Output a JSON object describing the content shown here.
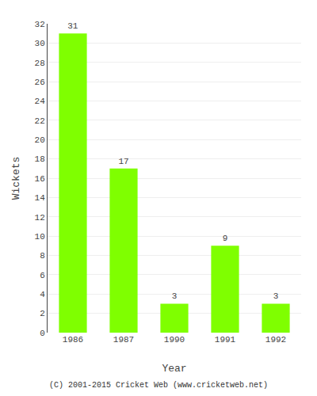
{
  "chart_data": {
    "type": "bar",
    "categories": [
      "1986",
      "1987",
      "1990",
      "1991",
      "1992"
    ],
    "values": [
      31,
      17,
      3,
      9,
      3
    ],
    "color": "#7FFF00",
    "xlabel": "Year",
    "ylabel": "Wickets",
    "ylim": [
      0,
      32
    ],
    "yticks": [
      0,
      2,
      4,
      6,
      8,
      10,
      12,
      14,
      16,
      18,
      20,
      22,
      24,
      26,
      28,
      30,
      32
    ],
    "grid": true,
    "data_labels": true,
    "annotations": [
      "(C) 2001-2015 Cricket Web (www.cricketweb.net)"
    ]
  }
}
